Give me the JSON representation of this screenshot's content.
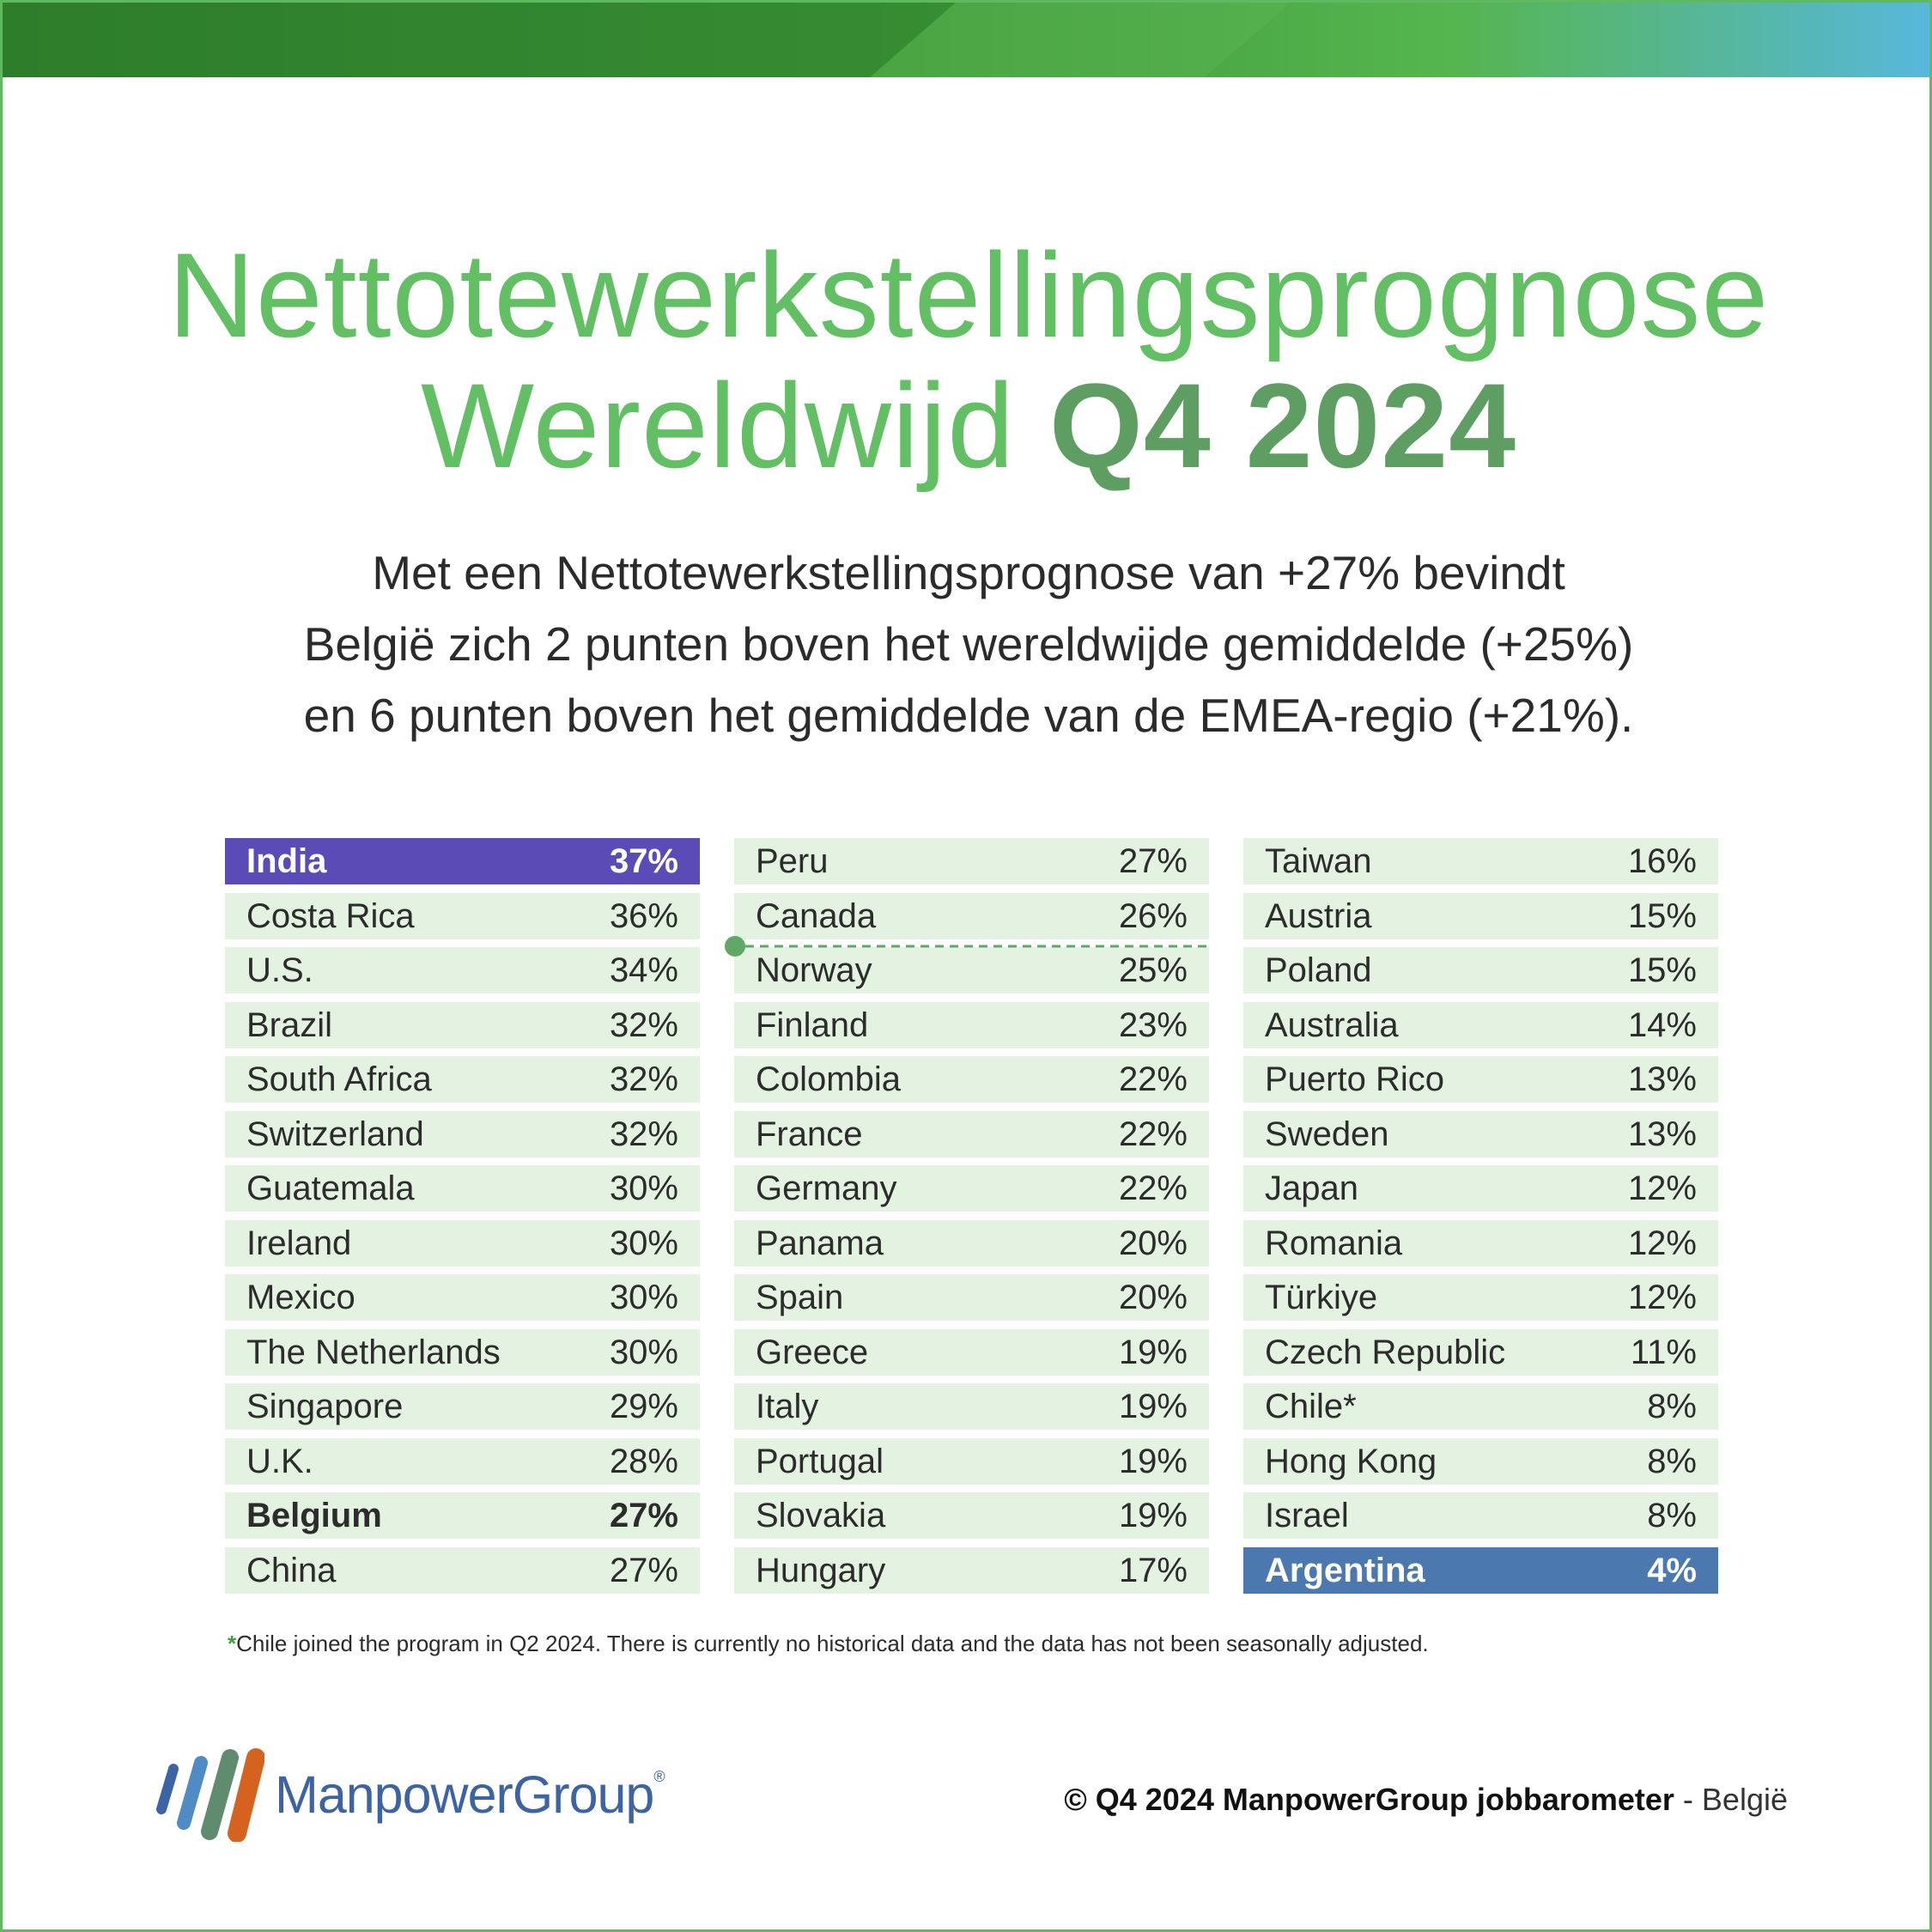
{
  "title": {
    "line1": "Nettotewerkstellingsprognose",
    "line2_main": "Wereldwijd",
    "line2_accent": "Q4 2024"
  },
  "subtitle": {
    "line1": "Met een Nettotewerkstellingsprognose van +27% bevindt",
    "line2": "België zich 2 punten boven het wereldwijde gemiddelde (+25%)",
    "line3": "en 6 punten boven het gemiddelde van de EMEA-regio (+21%)."
  },
  "colors": {
    "title_green": "#63bf63",
    "accent_green": "#5f9e63",
    "row_bg": "#e4f2e1",
    "top_purple": "#5b4bb7",
    "bottom_blue": "#4b78ae",
    "marker_green": "#5fa865"
  },
  "chart_data": {
    "type": "table",
    "unit": "%",
    "columns": [
      [
        {
          "country": "India",
          "value": "37%",
          "style": "top"
        },
        {
          "country": "Costa Rica",
          "value": "36%"
        },
        {
          "country": "U.S.",
          "value": "34%"
        },
        {
          "country": "Brazil",
          "value": "32%"
        },
        {
          "country": "South Africa",
          "value": "32%"
        },
        {
          "country": "Switzerland",
          "value": "32%"
        },
        {
          "country": "Guatemala",
          "value": "30%"
        },
        {
          "country": "Ireland",
          "value": "30%"
        },
        {
          "country": "Mexico",
          "value": "30%"
        },
        {
          "country": "The Netherlands",
          "value": "30%"
        },
        {
          "country": "Singapore",
          "value": "29%"
        },
        {
          "country": "U.K.",
          "value": "28%"
        },
        {
          "country": "Belgium",
          "value": "27%",
          "style": "bold"
        },
        {
          "country": "China",
          "value": "27%"
        }
      ],
      [
        {
          "country": "Peru",
          "value": "27%"
        },
        {
          "country": "Canada",
          "value": "26%"
        },
        {
          "country": "Norway",
          "value": "25%"
        },
        {
          "country": "Finland",
          "value": "23%"
        },
        {
          "country": "Colombia",
          "value": "22%"
        },
        {
          "country": "France",
          "value": "22%"
        },
        {
          "country": "Germany",
          "value": "22%"
        },
        {
          "country": "Panama",
          "value": "20%"
        },
        {
          "country": "Spain",
          "value": "20%"
        },
        {
          "country": "Greece",
          "value": "19%"
        },
        {
          "country": "Italy",
          "value": "19%"
        },
        {
          "country": "Portugal",
          "value": "19%"
        },
        {
          "country": "Slovakia",
          "value": "19%"
        },
        {
          "country": "Hungary",
          "value": "17%"
        }
      ],
      [
        {
          "country": "Taiwan",
          "value": "16%"
        },
        {
          "country": "Austria",
          "value": "15%"
        },
        {
          "country": "Poland",
          "value": "15%"
        },
        {
          "country": "Australia",
          "value": "14%"
        },
        {
          "country": "Puerto Rico",
          "value": "13%"
        },
        {
          "country": "Sweden",
          "value": "13%"
        },
        {
          "country": "Japan",
          "value": "12%"
        },
        {
          "country": "Romania",
          "value": "12%"
        },
        {
          "country": "Türkiye",
          "value": "12%"
        },
        {
          "country": "Czech Republic",
          "value": "11%"
        },
        {
          "country": "Chile*",
          "value": "8%"
        },
        {
          "country": "Hong Kong",
          "value": "8%"
        },
        {
          "country": "Israel",
          "value": "8%"
        },
        {
          "country": "Argentina",
          "value": "4%",
          "style": "bottom"
        }
      ]
    ]
  },
  "footnote": {
    "star": "*",
    "text": "Chile joined the program in Q2 2024. There is currently no historical data and the data has not been seasonally adjusted."
  },
  "logo": {
    "text": "ManpowerGroup",
    "registered": "®"
  },
  "copyright": {
    "main": "© Q4 2024 ManpowerGroup jobbarometer",
    "separator": " - ",
    "region": "België"
  }
}
